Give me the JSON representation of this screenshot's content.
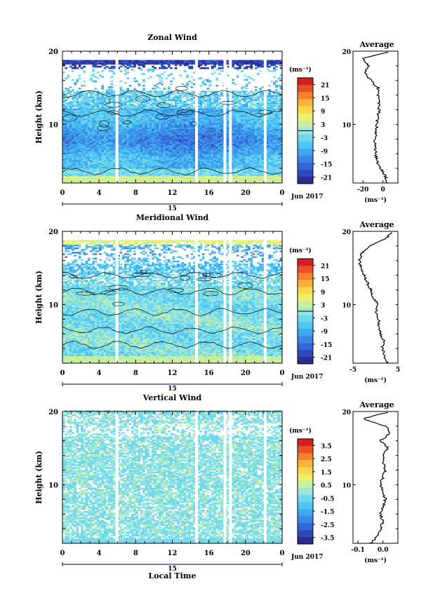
{
  "colors": {
    "palette": [
      "#2a2c8f",
      "#2f49b8",
      "#3568d6",
      "#3a88e6",
      "#3fa6ef",
      "#4ec5f2",
      "#70d8ec",
      "#9be6dc",
      "#c8ef9f",
      "#eef06a",
      "#f7d84a",
      "#f8b13b",
      "#f4822f",
      "#ea5028",
      "#d21f1f"
    ],
    "white": "#ffffff"
  },
  "chart_data": [
    {
      "type": "heatmap",
      "title": "Zonal Wind",
      "ylabel": "Height (km)",
      "xlabel": "",
      "x_ticks": [
        "0",
        "4",
        "8",
        "12",
        "16",
        "20",
        "0"
      ],
      "xlim": [
        0,
        24
      ],
      "y_ticks": [
        "20",
        "10"
      ],
      "ylim": [
        2,
        20
      ],
      "date_label": "15",
      "date_suffix": "Jun 2017",
      "colorbar": {
        "unit": "(ms⁻¹)",
        "ticks": [
          "21",
          "15",
          "9",
          "3",
          "-3",
          "-9",
          "-15",
          "-21"
        ],
        "range": [
          -24,
          24
        ],
        "zero_line": true
      },
      "gaps": [
        5.8,
        14.5,
        17.6,
        18.2,
        22.0
      ],
      "profile": {
        "title": "Average",
        "x_ticks": [
          "-20",
          "0"
        ],
        "xlim": [
          -30,
          15
        ],
        "y_ticks": [
          "20",
          "10"
        ],
        "unit": "(ms⁻¹)",
        "heights": [
          2,
          3,
          4,
          5,
          6,
          7,
          8,
          9,
          10,
          11,
          12,
          13,
          14,
          15,
          16,
          17,
          18,
          19,
          20
        ],
        "values": [
          5,
          2,
          -2,
          -6,
          -7,
          -8,
          -8,
          -7,
          -6,
          -5,
          -4,
          -4,
          -5,
          -5,
          -12,
          -18,
          -15,
          -20,
          8
        ]
      }
    },
    {
      "type": "heatmap",
      "title": "Meridional Wind",
      "ylabel": "Height (km)",
      "xlabel": "",
      "x_ticks": [
        "0",
        "4",
        "8",
        "12",
        "16",
        "20",
        "0"
      ],
      "xlim": [
        0,
        24
      ],
      "y_ticks": [
        "20",
        "10"
      ],
      "ylim": [
        2,
        20
      ],
      "date_label": "15",
      "date_suffix": "Jun 2017",
      "colorbar": {
        "unit": "(ms⁻¹)",
        "ticks": [
          "21",
          "15",
          "9",
          "3",
          "-3",
          "-9",
          "-15",
          "-21"
        ],
        "range": [
          -24,
          24
        ],
        "zero_line": true
      },
      "gaps": [
        5.8,
        14.5,
        17.6,
        18.2,
        22.0
      ],
      "profile": {
        "title": "Average",
        "x_ticks": [
          "-5",
          "5"
        ],
        "xlim": [
          -5,
          5
        ],
        "y_ticks": [
          "20",
          "10"
        ],
        "unit": "(ms⁻¹)",
        "heights": [
          2,
          3,
          4,
          5,
          6,
          7,
          8,
          9,
          10,
          11,
          12,
          13,
          14,
          15,
          16,
          17,
          18,
          19,
          20
        ],
        "values": [
          2.5,
          2.0,
          1.5,
          1.8,
          1.2,
          0.5,
          0.8,
          0.2,
          0.6,
          -0.5,
          -1.0,
          -1.8,
          -2.5,
          -3.2,
          -3.6,
          -3.0,
          -1.5,
          2.5,
          3.5
        ]
      }
    },
    {
      "type": "heatmap",
      "title": "Vertical Wind",
      "ylabel": "Height (km)",
      "xlabel": "Local Time",
      "x_ticks": [
        "0",
        "4",
        "8",
        "12",
        "16",
        "20",
        "0"
      ],
      "xlim": [
        0,
        24
      ],
      "y_ticks": [
        "20",
        "10"
      ],
      "ylim": [
        2,
        20
      ],
      "date_label": "15",
      "date_suffix": "Jun 2017",
      "colorbar": {
        "unit": "(ms⁻¹)",
        "ticks": [
          "3.5",
          "2.5",
          "1.5",
          "0.5",
          "-0.5",
          "-1.5",
          "-2.5",
          "-3.5"
        ],
        "range": [
          -4,
          4
        ],
        "zero_line": false
      },
      "gaps": [
        5.8,
        14.5,
        17.6,
        18.2,
        22.0
      ],
      "profile": {
        "title": "Average",
        "x_ticks": [
          "-0.1",
          "0.0"
        ],
        "xlim": [
          -0.12,
          0.06
        ],
        "y_ticks": [
          "20",
          "10"
        ],
        "unit": "(ms⁻¹)",
        "heights": [
          2,
          3,
          4,
          5,
          6,
          7,
          8,
          9,
          10,
          11,
          12,
          13,
          14,
          15,
          16,
          17,
          18,
          19,
          20
        ],
        "values": [
          -0.05,
          -0.02,
          -0.01,
          0.0,
          -0.01,
          0.0,
          0.01,
          0.0,
          -0.01,
          0.0,
          0.01,
          0.0,
          0.0,
          0.02,
          -0.01,
          0.03,
          0.01,
          -0.08,
          0.03
        ]
      }
    }
  ]
}
